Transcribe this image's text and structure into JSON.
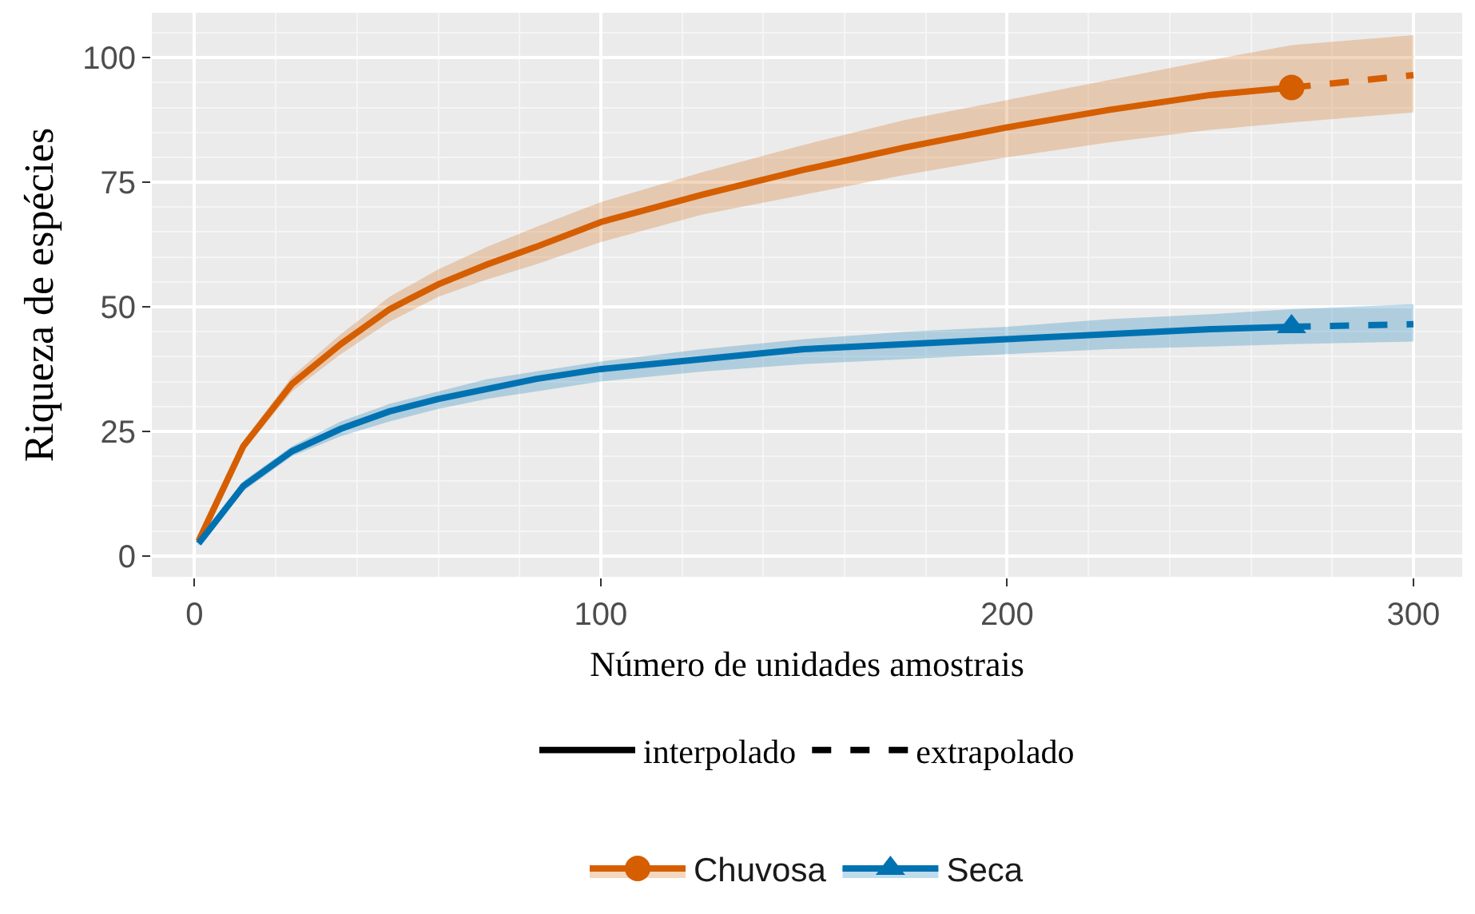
{
  "chart_data": {
    "type": "line",
    "xlabel": "Número de unidades amostrais",
    "ylabel": "Riqueza de espécies",
    "xlim": [
      -10.5,
      312
    ],
    "ylim": [
      -4.2,
      109
    ],
    "xticks": [
      0,
      100,
      200,
      300
    ],
    "yticks": [
      0,
      25,
      50,
      75,
      100
    ],
    "grid": true,
    "legend": "bottom",
    "annotations": [
      "interpolado",
      "extrapolado"
    ],
    "series": [
      {
        "color": "#d55e00",
        "line_style": "solid",
        "marker": "none",
        "x": [
          1,
          12,
          24,
          36,
          48,
          60,
          72,
          84,
          100,
          125,
          150,
          175,
          200,
          225,
          250,
          270
        ],
        "values": [
          3,
          22,
          34.5,
          42.5,
          49.5,
          54.5,
          58.5,
          62,
          67,
          72.5,
          77.5,
          82,
          86,
          89.5,
          92.5,
          94
        ],
        "lower": [
          2.5,
          21,
          33,
          40.5,
          47,
          52,
          55.5,
          58.5,
          63,
          68.5,
          72.5,
          76.5,
          80,
          83,
          85.5,
          87
        ],
        "upper": [
          3.5,
          23,
          36,
          44.5,
          52,
          57.5,
          62,
          66,
          71,
          77,
          82.5,
          87.5,
          91.5,
          95.5,
          99.5,
          102.5
        ]
      },
      {
        "color": "#d55e00",
        "line_style": "dashed",
        "marker": "none",
        "x": [
          270,
          300
        ],
        "values": [
          94,
          96.5
        ],
        "lower": [
          87,
          89
        ],
        "upper": [
          102.5,
          104.5
        ]
      },
      {
        "color": "#0072b2",
        "line_style": "solid",
        "marker": "none",
        "x": [
          1,
          12,
          24,
          36,
          48,
          60,
          72,
          84,
          100,
          125,
          150,
          175,
          200,
          225,
          250,
          270
        ],
        "values": [
          2.5,
          14,
          21,
          25.5,
          29,
          31.5,
          33.5,
          35.5,
          37.5,
          39.5,
          41.5,
          42.5,
          43.5,
          44.5,
          45.5,
          46
        ],
        "lower": [
          2,
          13,
          20,
          24,
          27,
          29.5,
          31.5,
          33,
          35,
          37,
          38.5,
          39.5,
          40.5,
          41.5,
          42,
          42.5
        ],
        "upper": [
          3,
          15,
          22,
          27,
          30.5,
          33,
          35.5,
          37,
          39,
          41.5,
          43.5,
          45,
          46,
          47.5,
          48.5,
          49.5
        ]
      },
      {
        "color": "#0072b2",
        "line_style": "dashed",
        "marker": "none",
        "x": [
          270,
          300
        ],
        "values": [
          46,
          46.5
        ],
        "lower": [
          42.5,
          43
        ],
        "upper": [
          49.5,
          50.5
        ]
      },
      {
        "type": "scatter",
        "name": "Chuvosa",
        "color": "#d55e00",
        "marker": "circle",
        "x": [
          270
        ],
        "values": [
          94
        ]
      },
      {
        "type": "scatter",
        "name": "Seca",
        "color": "#0072b2",
        "marker": "triangle",
        "x": [
          270
        ],
        "values": [
          46
        ]
      }
    ]
  }
}
